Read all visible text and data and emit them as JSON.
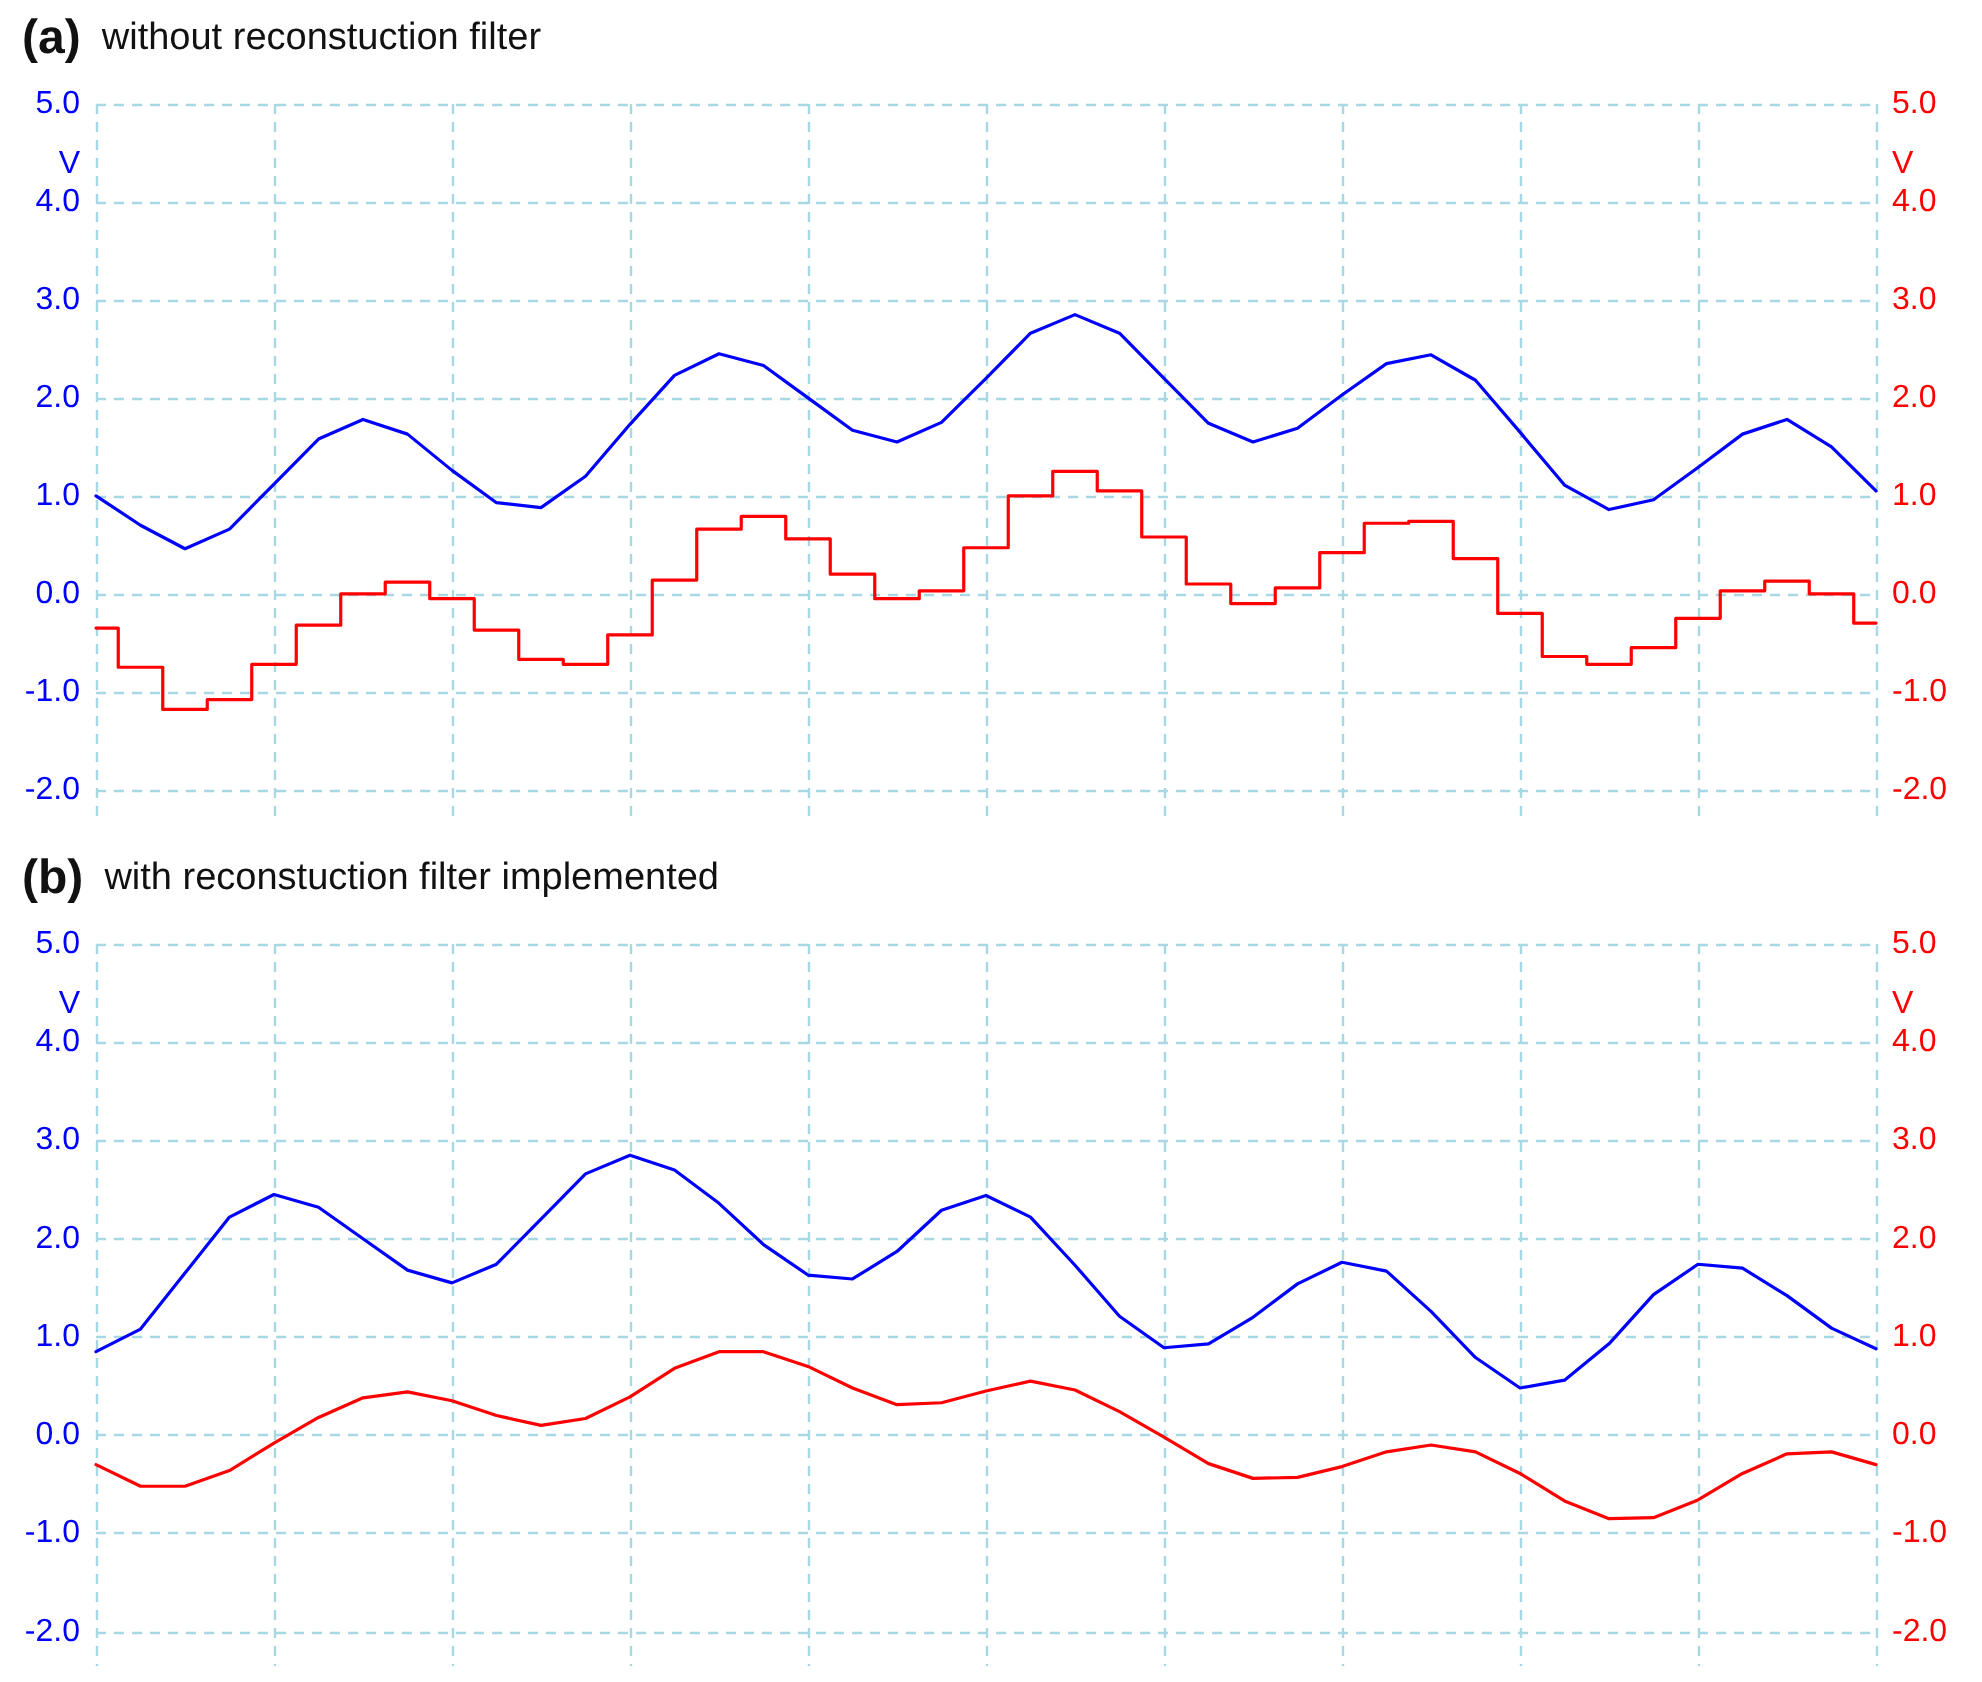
{
  "chart_data": [
    {
      "type": "line",
      "title": "(a) without reconstuction filter",
      "ylabel": "V",
      "y2label": "V",
      "categories": [
        null,
        null,
        null,
        null,
        null,
        null,
        null,
        null,
        null,
        null,
        null,
        null,
        null,
        null,
        null,
        null,
        null,
        null,
        null,
        null,
        null,
        null,
        null,
        null,
        null,
        null,
        null,
        null,
        null,
        null,
        null,
        null,
        null,
        null,
        null,
        null,
        null,
        null,
        null,
        null,
        null
      ],
      "ylim": [
        -2.35,
        5
      ],
      "yticks": [
        {
          "value": -2,
          "label": "-2.0"
        },
        {
          "value": -1,
          "label": "-1.0"
        },
        {
          "value": 0,
          "label": "0.0"
        },
        {
          "value": 1,
          "label": "1.0"
        },
        {
          "value": 2,
          "label": "2.0"
        },
        {
          "value": 3,
          "label": "3.0"
        },
        {
          "value": 4,
          "label": "4.0"
        },
        {
          "value": 5,
          "label": "5.0"
        }
      ],
      "y2lim": [
        -2.35,
        5
      ],
      "y2ticks": [
        {
          "value": -2,
          "label": "-2.0"
        },
        {
          "value": -1,
          "label": "-1.0"
        },
        {
          "value": 0,
          "label": "0.0"
        },
        {
          "value": 1,
          "label": "1.0"
        },
        {
          "value": 2,
          "label": "2.0"
        },
        {
          "value": 3,
          "label": "3.0"
        },
        {
          "value": 4,
          "label": "4.0"
        },
        {
          "value": 5,
          "label": "5.0"
        }
      ],
      "grid": true,
      "marker": "none",
      "series": [
        {
          "color": "#0000ff",
          "values": [
            1.0,
            0.7,
            0.46,
            0.66,
            1.12,
            1.58,
            1.78,
            1.63,
            1.26,
            0.93,
            0.88,
            1.2,
            1.73,
            2.23,
            2.45,
            2.33,
            2.0,
            1.67,
            1.55,
            1.75,
            2.2,
            2.66,
            2.85,
            2.66,
            2.2,
            1.74,
            1.55,
            1.69,
            2.03,
            2.35,
            2.44,
            2.18,
            1.65,
            1.11,
            0.86,
            0.96,
            1.29,
            1.63,
            1.78,
            1.5,
            1.05
          ]
        },
        {
          "type": "step",
          "axis": "y2",
          "color": "#ff0000",
          "values": [
            -0.35,
            -0.75,
            -1.18,
            -1.08,
            -0.72,
            -0.32,
            0.0,
            0.12,
            -0.05,
            -0.37,
            -0.67,
            -0.72,
            -0.42,
            0.14,
            0.66,
            0.79,
            0.56,
            0.2,
            -0.05,
            0.03,
            0.47,
            1.0,
            1.25,
            1.05,
            0.58,
            0.1,
            -0.1,
            0.06,
            0.42,
            0.72,
            0.74,
            0.36,
            -0.2,
            -0.64,
            -0.72,
            -0.55,
            -0.25,
            0.03,
            0.13,
            0.0,
            -0.3
          ]
        }
      ]
    },
    {
      "type": "line",
      "title": "(b) with reconstuction filter implemented",
      "ylabel": "V",
      "y2label": "V",
      "categories": [
        null,
        null,
        null,
        null,
        null,
        null,
        null,
        null,
        null,
        null,
        null,
        null,
        null,
        null,
        null,
        null,
        null,
        null,
        null,
        null,
        null,
        null,
        null,
        null,
        null,
        null,
        null,
        null,
        null,
        null,
        null,
        null,
        null,
        null,
        null,
        null,
        null,
        null,
        null,
        null,
        null
      ],
      "ylim": [
        -2.35,
        5
      ],
      "yticks": [
        {
          "value": -2,
          "label": "-2.0"
        },
        {
          "value": -1,
          "label": "-1.0"
        },
        {
          "value": 0,
          "label": "0.0"
        },
        {
          "value": 1,
          "label": "1.0"
        },
        {
          "value": 2,
          "label": "2.0"
        },
        {
          "value": 3,
          "label": "3.0"
        },
        {
          "value": 4,
          "label": "4.0"
        },
        {
          "value": 5,
          "label": "5.0"
        }
      ],
      "y2lim": [
        -2.35,
        5
      ],
      "y2ticks": [
        {
          "value": -2,
          "label": "-2.0"
        },
        {
          "value": -1,
          "label": "-1.0"
        },
        {
          "value": 0,
          "label": "0.0"
        },
        {
          "value": 1,
          "label": "1.0"
        },
        {
          "value": 2,
          "label": "2.0"
        },
        {
          "value": 3,
          "label": "3.0"
        },
        {
          "value": 4,
          "label": "4.0"
        },
        {
          "value": 5,
          "label": "5.0"
        }
      ],
      "grid": true,
      "marker": "none",
      "series": [
        {
          "color": "#0000ff",
          "values": [
            0.85,
            1.08,
            1.65,
            2.22,
            2.45,
            2.32,
            2.0,
            1.68,
            1.55,
            1.74,
            2.2,
            2.66,
            2.85,
            2.7,
            2.36,
            1.94,
            1.63,
            1.59,
            1.87,
            2.29,
            2.44,
            2.22,
            1.73,
            1.21,
            0.89,
            0.93,
            1.2,
            1.54,
            1.76,
            1.67,
            1.26,
            0.79,
            0.48,
            0.56,
            0.93,
            1.43,
            1.74,
            1.7,
            1.42,
            1.09,
            0.88
          ]
        },
        {
          "axis": "y2",
          "color": "#ff0000",
          "values": [
            -0.3,
            -0.52,
            -0.52,
            -0.36,
            -0.08,
            0.18,
            0.38,
            0.44,
            0.35,
            0.2,
            0.1,
            0.17,
            0.39,
            0.68,
            0.85,
            0.85,
            0.7,
            0.48,
            0.31,
            0.33,
            0.45,
            0.55,
            0.46,
            0.24,
            -0.02,
            -0.29,
            -0.44,
            -0.43,
            -0.32,
            -0.17,
            -0.1,
            -0.17,
            -0.39,
            -0.67,
            -0.85,
            -0.84,
            -0.66,
            -0.39,
            -0.19,
            -0.17,
            -0.3
          ]
        }
      ]
    }
  ]
}
